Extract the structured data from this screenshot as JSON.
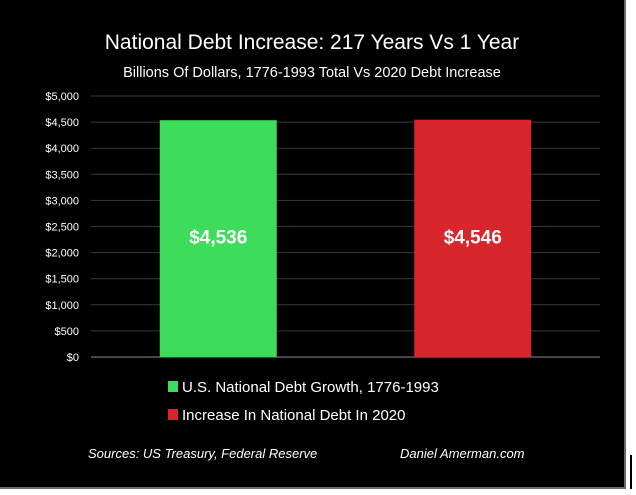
{
  "chart_data": {
    "type": "bar",
    "title": "National Debt Increase:  217 Years Vs 1 Year",
    "subtitle": "Billions Of Dollars, 1776-1993 Total Vs 2020 Debt Increase",
    "xlabel": "",
    "ylabel": "",
    "ylim": [
      0,
      5000
    ],
    "yticks": [
      0,
      500,
      1000,
      1500,
      2000,
      2500,
      3000,
      3500,
      4000,
      4500,
      5000
    ],
    "ytick_labels": [
      "$0",
      "$500",
      "$1,000",
      "$1,500",
      "$2,000",
      "$2,500",
      "$3,000",
      "$3,500",
      "$4,000",
      "$4,500",
      "$5,000"
    ],
    "grid": true,
    "legend_position": "bottom",
    "series": [
      {
        "name": "U.S. National Debt Growth, 1776-1993",
        "value": 4536,
        "label": "$4,536",
        "color": "#3ddc5a"
      },
      {
        "name": "Increase In National Debt In 2020",
        "value": 4546,
        "label": "$4,546",
        "color": "#d8262c"
      }
    ]
  },
  "footer": {
    "sources": "Sources:  US Treasury, Federal Reserve",
    "credit": "Daniel Amerman.com"
  }
}
